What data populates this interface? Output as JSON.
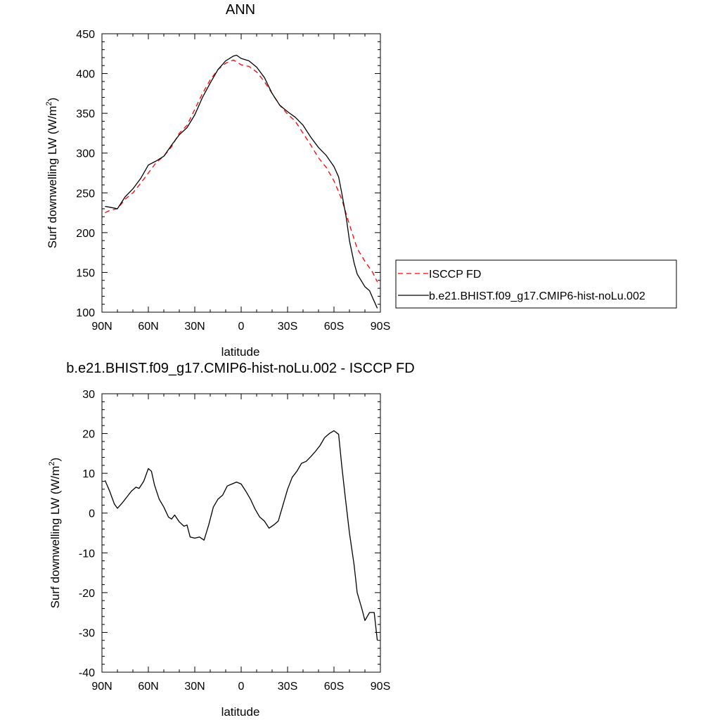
{
  "chart_data": [
    {
      "type": "line",
      "title": "ANN",
      "xlabel": "latitude",
      "ylabel": "Surf downwelling LW (W/m",
      "ylabel_sup": "2",
      "ylabel_end": ")",
      "xlim": [
        90,
        -90
      ],
      "ylim": [
        100,
        450
      ],
      "x_ticks": [
        {
          "value": 90,
          "label": "90N"
        },
        {
          "value": 60,
          "label": "60N"
        },
        {
          "value": 30,
          "label": "30N"
        },
        {
          "value": 0,
          "label": "0"
        },
        {
          "value": -30,
          "label": "30S"
        },
        {
          "value": -60,
          "label": "60S"
        },
        {
          "value": -90,
          "label": "90S"
        }
      ],
      "y_ticks": [
        100,
        150,
        200,
        250,
        300,
        350,
        400,
        450
      ],
      "legend": "right",
      "series": [
        {
          "name": "ISCCP FD",
          "color": "#ff0000",
          "dash": "dashed",
          "x": [
            88,
            85,
            80,
            75,
            70,
            65,
            60,
            55,
            50,
            45,
            40,
            35,
            30,
            25,
            20,
            15,
            10,
            5,
            0,
            -5,
            -10,
            -15,
            -20,
            -25,
            -30,
            -35,
            -40,
            -45,
            -50,
            -55,
            -60,
            -65,
            -70,
            -72,
            -75,
            -80,
            -85,
            -88
          ],
          "y": [
            225,
            228,
            230,
            242,
            250,
            262,
            275,
            288,
            296,
            308,
            325,
            335,
            355,
            375,
            392,
            405,
            413,
            417,
            411,
            409,
            402,
            390,
            375,
            360,
            349,
            340,
            325,
            310,
            294,
            282,
            265,
            242,
            210,
            198,
            180,
            164,
            150,
            138
          ]
        },
        {
          "name": "b.e21.BHIST.f09_g17.CMIP6-hist-noLu.002",
          "color": "#000000",
          "dash": "solid",
          "x": [
            88,
            85,
            80,
            75,
            70,
            65,
            60,
            55,
            50,
            45,
            40,
            35,
            30,
            25,
            20,
            15,
            10,
            5,
            3,
            0,
            -5,
            -10,
            -15,
            -20,
            -25,
            -30,
            -35,
            -40,
            -45,
            -50,
            -55,
            -60,
            -63,
            -65,
            -68,
            -70,
            -73,
            -75,
            -80,
            -83,
            -85,
            -88
          ],
          "y": [
            233,
            232,
            230,
            245,
            255,
            268,
            285,
            290,
            296,
            310,
            323,
            332,
            348,
            370,
            388,
            405,
            416,
            422,
            423,
            419,
            416,
            408,
            395,
            375,
            360,
            352,
            345,
            335,
            320,
            307,
            297,
            283,
            270,
            250,
            218,
            190,
            162,
            148,
            132,
            127,
            118,
            105
          ]
        }
      ]
    },
    {
      "type": "line",
      "title": "b.e21.BHIST.f09_g17.CMIP6-hist-noLu.002 - ISCCP FD",
      "xlabel": "latitude",
      "ylabel": "Surf downwelling LW (W/m",
      "ylabel_sup": "2",
      "ylabel_end": ")",
      "xlim": [
        90,
        -90
      ],
      "ylim": [
        -40,
        30
      ],
      "x_ticks": [
        {
          "value": 90,
          "label": "90N"
        },
        {
          "value": 60,
          "label": "60N"
        },
        {
          "value": 30,
          "label": "30N"
        },
        {
          "value": 0,
          "label": "0"
        },
        {
          "value": -30,
          "label": "30S"
        },
        {
          "value": -60,
          "label": "60S"
        },
        {
          "value": -90,
          "label": "90S"
        }
      ],
      "y_ticks": [
        -40,
        -30,
        -20,
        -10,
        0,
        10,
        20,
        30
      ],
      "series": [
        {
          "color": "#000000",
          "dash": "solid",
          "x": [
            88,
            85,
            82,
            80,
            77,
            74,
            71,
            68,
            66,
            63,
            60,
            58,
            56,
            53,
            50,
            47,
            45,
            43,
            40,
            37,
            35,
            33,
            30,
            27,
            24,
            21,
            18,
            15,
            12,
            9,
            6,
            3,
            0,
            -3,
            -6,
            -9,
            -12,
            -15,
            -18,
            -21,
            -24,
            -27,
            -30,
            -33,
            -36,
            -39,
            -42,
            -45,
            -48,
            -51,
            -54,
            -57,
            -60,
            -63,
            -65,
            -67,
            -70,
            -73,
            -75,
            -78,
            -80,
            -83,
            -86,
            -88
          ],
          "y": [
            8.2,
            5.5,
            2.3,
            1.2,
            2.5,
            4.0,
            5.5,
            6.5,
            6.2,
            8.0,
            11.2,
            10.5,
            7.0,
            3.5,
            1.5,
            -1.0,
            -1.5,
            -0.5,
            -2.2,
            -3.3,
            -3.0,
            -6.0,
            -6.3,
            -6.0,
            -6.8,
            -3.0,
            1.5,
            3.5,
            4.5,
            6.8,
            7.3,
            7.8,
            7.3,
            5.5,
            3.5,
            1.0,
            -1.0,
            -2.0,
            -3.8,
            -3.0,
            -2.0,
            2.0,
            6.0,
            9.0,
            10.5,
            12.5,
            13.0,
            14.2,
            15.5,
            17.0,
            19.0,
            20.0,
            20.7,
            19.8,
            12.0,
            5.0,
            -5.0,
            -13.0,
            -20.0,
            -24.0,
            -27.0,
            -25.0,
            -25.0,
            -32.0
          ]
        }
      ]
    }
  ]
}
